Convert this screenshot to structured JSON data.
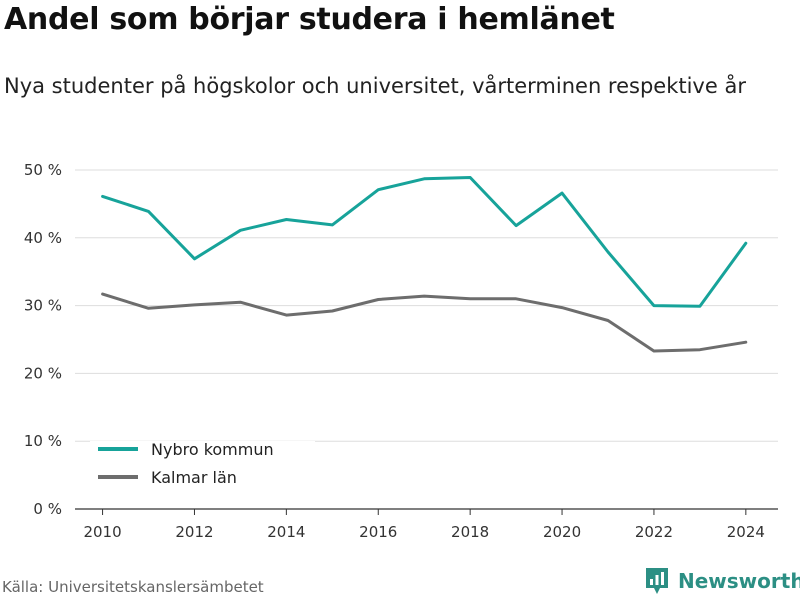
{
  "header": {
    "title": "Andel som börjar studera i hemlänet",
    "subtitle": "Nya studenter på högskolor och universitet, vårterminen respektive år"
  },
  "footer": {
    "source": "Källa: Universitetskanslersämbetet",
    "brand": "Newsworthy"
  },
  "colors": {
    "nybro": "#17a39a",
    "kalmar": "#6d6d6d",
    "grid": "#dddddd",
    "brand": "#2c8f84"
  },
  "chart_data": {
    "type": "line",
    "x": [
      2010,
      2011,
      2012,
      2013,
      2014,
      2015,
      2016,
      2017,
      2018,
      2019,
      2020,
      2021,
      2022,
      2023,
      2024
    ],
    "series": [
      {
        "name": "Nybro kommun",
        "values": [
          46.1,
          43.9,
          36.9,
          41.1,
          42.7,
          41.9,
          47.1,
          48.7,
          48.9,
          41.8,
          46.6,
          37.9,
          30.0,
          29.9,
          39.2
        ]
      },
      {
        "name": "Kalmar län",
        "values": [
          31.7,
          29.6,
          30.1,
          30.5,
          28.6,
          29.2,
          30.9,
          31.4,
          31.0,
          31.0,
          29.7,
          27.8,
          23.3,
          23.5,
          24.6
        ]
      }
    ],
    "ylim": [
      0,
      50
    ],
    "yticks": [
      0,
      10,
      20,
      30,
      40,
      50
    ],
    "ytick_labels": [
      "0 %",
      "10 %",
      "20 %",
      "30 %",
      "40 %",
      "50 %"
    ],
    "xticks": [
      2010,
      2012,
      2014,
      2016,
      2018,
      2020,
      2022,
      2024
    ],
    "xtick_labels": [
      "2010",
      "2012",
      "2014",
      "2016",
      "2018",
      "2020",
      "2022",
      "2024"
    ],
    "xlim": [
      2009.4,
      2024.7
    ],
    "grid": true,
    "legend": "bottom-left"
  }
}
